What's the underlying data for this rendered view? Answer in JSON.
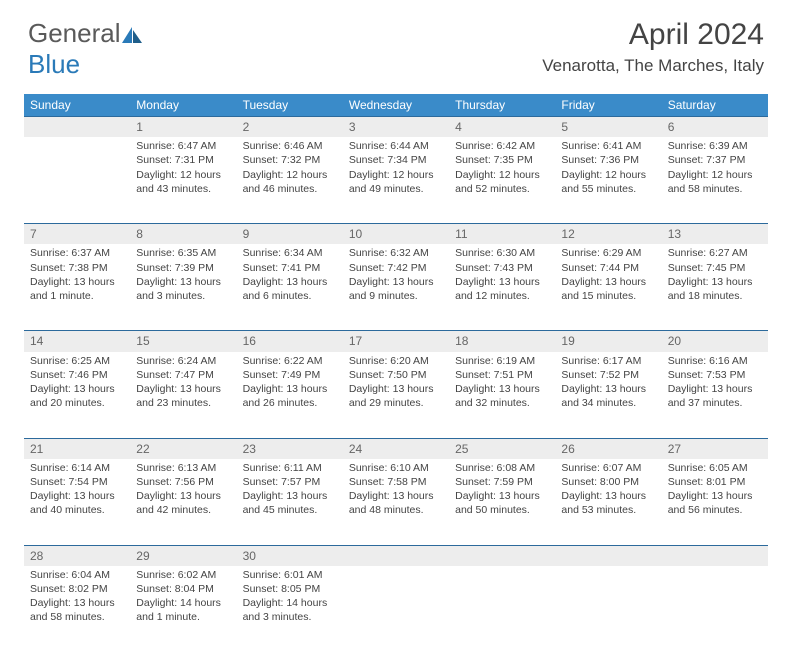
{
  "logo": {
    "word1": "General",
    "word2": "Blue"
  },
  "title": "April 2024",
  "location": "Venarotta, The Marches, Italy",
  "colors": {
    "header_bg": "#3a8bc9",
    "header_text": "#ffffff",
    "daynum_bg": "#ededed",
    "daynum_border": "#2c6a9c",
    "body_text": "#444444",
    "logo_gray": "#5a5a5a",
    "logo_blue": "#2a7ab8"
  },
  "weekdays": [
    "Sunday",
    "Monday",
    "Tuesday",
    "Wednesday",
    "Thursday",
    "Friday",
    "Saturday"
  ],
  "weeks": [
    [
      {
        "n": "",
        "sr": "",
        "ss": "",
        "dl": ""
      },
      {
        "n": "1",
        "sr": "Sunrise: 6:47 AM",
        "ss": "Sunset: 7:31 PM",
        "dl": "Daylight: 12 hours and 43 minutes."
      },
      {
        "n": "2",
        "sr": "Sunrise: 6:46 AM",
        "ss": "Sunset: 7:32 PM",
        "dl": "Daylight: 12 hours and 46 minutes."
      },
      {
        "n": "3",
        "sr": "Sunrise: 6:44 AM",
        "ss": "Sunset: 7:34 PM",
        "dl": "Daylight: 12 hours and 49 minutes."
      },
      {
        "n": "4",
        "sr": "Sunrise: 6:42 AM",
        "ss": "Sunset: 7:35 PM",
        "dl": "Daylight: 12 hours and 52 minutes."
      },
      {
        "n": "5",
        "sr": "Sunrise: 6:41 AM",
        "ss": "Sunset: 7:36 PM",
        "dl": "Daylight: 12 hours and 55 minutes."
      },
      {
        "n": "6",
        "sr": "Sunrise: 6:39 AM",
        "ss": "Sunset: 7:37 PM",
        "dl": "Daylight: 12 hours and 58 minutes."
      }
    ],
    [
      {
        "n": "7",
        "sr": "Sunrise: 6:37 AM",
        "ss": "Sunset: 7:38 PM",
        "dl": "Daylight: 13 hours and 1 minute."
      },
      {
        "n": "8",
        "sr": "Sunrise: 6:35 AM",
        "ss": "Sunset: 7:39 PM",
        "dl": "Daylight: 13 hours and 3 minutes."
      },
      {
        "n": "9",
        "sr": "Sunrise: 6:34 AM",
        "ss": "Sunset: 7:41 PM",
        "dl": "Daylight: 13 hours and 6 minutes."
      },
      {
        "n": "10",
        "sr": "Sunrise: 6:32 AM",
        "ss": "Sunset: 7:42 PM",
        "dl": "Daylight: 13 hours and 9 minutes."
      },
      {
        "n": "11",
        "sr": "Sunrise: 6:30 AM",
        "ss": "Sunset: 7:43 PM",
        "dl": "Daylight: 13 hours and 12 minutes."
      },
      {
        "n": "12",
        "sr": "Sunrise: 6:29 AM",
        "ss": "Sunset: 7:44 PM",
        "dl": "Daylight: 13 hours and 15 minutes."
      },
      {
        "n": "13",
        "sr": "Sunrise: 6:27 AM",
        "ss": "Sunset: 7:45 PM",
        "dl": "Daylight: 13 hours and 18 minutes."
      }
    ],
    [
      {
        "n": "14",
        "sr": "Sunrise: 6:25 AM",
        "ss": "Sunset: 7:46 PM",
        "dl": "Daylight: 13 hours and 20 minutes."
      },
      {
        "n": "15",
        "sr": "Sunrise: 6:24 AM",
        "ss": "Sunset: 7:47 PM",
        "dl": "Daylight: 13 hours and 23 minutes."
      },
      {
        "n": "16",
        "sr": "Sunrise: 6:22 AM",
        "ss": "Sunset: 7:49 PM",
        "dl": "Daylight: 13 hours and 26 minutes."
      },
      {
        "n": "17",
        "sr": "Sunrise: 6:20 AM",
        "ss": "Sunset: 7:50 PM",
        "dl": "Daylight: 13 hours and 29 minutes."
      },
      {
        "n": "18",
        "sr": "Sunrise: 6:19 AM",
        "ss": "Sunset: 7:51 PM",
        "dl": "Daylight: 13 hours and 32 minutes."
      },
      {
        "n": "19",
        "sr": "Sunrise: 6:17 AM",
        "ss": "Sunset: 7:52 PM",
        "dl": "Daylight: 13 hours and 34 minutes."
      },
      {
        "n": "20",
        "sr": "Sunrise: 6:16 AM",
        "ss": "Sunset: 7:53 PM",
        "dl": "Daylight: 13 hours and 37 minutes."
      }
    ],
    [
      {
        "n": "21",
        "sr": "Sunrise: 6:14 AM",
        "ss": "Sunset: 7:54 PM",
        "dl": "Daylight: 13 hours and 40 minutes."
      },
      {
        "n": "22",
        "sr": "Sunrise: 6:13 AM",
        "ss": "Sunset: 7:56 PM",
        "dl": "Daylight: 13 hours and 42 minutes."
      },
      {
        "n": "23",
        "sr": "Sunrise: 6:11 AM",
        "ss": "Sunset: 7:57 PM",
        "dl": "Daylight: 13 hours and 45 minutes."
      },
      {
        "n": "24",
        "sr": "Sunrise: 6:10 AM",
        "ss": "Sunset: 7:58 PM",
        "dl": "Daylight: 13 hours and 48 minutes."
      },
      {
        "n": "25",
        "sr": "Sunrise: 6:08 AM",
        "ss": "Sunset: 7:59 PM",
        "dl": "Daylight: 13 hours and 50 minutes."
      },
      {
        "n": "26",
        "sr": "Sunrise: 6:07 AM",
        "ss": "Sunset: 8:00 PM",
        "dl": "Daylight: 13 hours and 53 minutes."
      },
      {
        "n": "27",
        "sr": "Sunrise: 6:05 AM",
        "ss": "Sunset: 8:01 PM",
        "dl": "Daylight: 13 hours and 56 minutes."
      }
    ],
    [
      {
        "n": "28",
        "sr": "Sunrise: 6:04 AM",
        "ss": "Sunset: 8:02 PM",
        "dl": "Daylight: 13 hours and 58 minutes."
      },
      {
        "n": "29",
        "sr": "Sunrise: 6:02 AM",
        "ss": "Sunset: 8:04 PM",
        "dl": "Daylight: 14 hours and 1 minute."
      },
      {
        "n": "30",
        "sr": "Sunrise: 6:01 AM",
        "ss": "Sunset: 8:05 PM",
        "dl": "Daylight: 14 hours and 3 minutes."
      },
      {
        "n": "",
        "sr": "",
        "ss": "",
        "dl": ""
      },
      {
        "n": "",
        "sr": "",
        "ss": "",
        "dl": ""
      },
      {
        "n": "",
        "sr": "",
        "ss": "",
        "dl": ""
      },
      {
        "n": "",
        "sr": "",
        "ss": "",
        "dl": ""
      }
    ]
  ]
}
